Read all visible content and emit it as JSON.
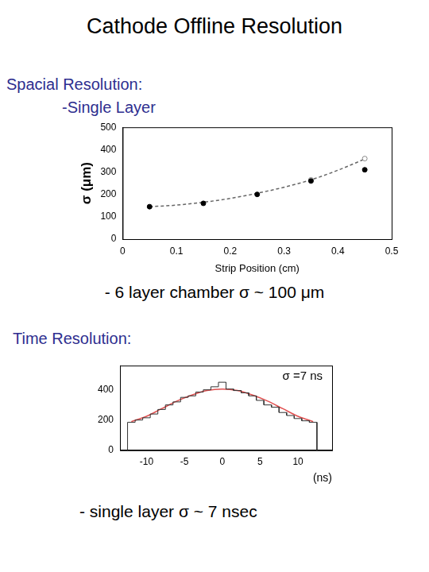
{
  "title": "Cathode Offline Resolution",
  "sections": [
    {
      "heading": "Spacial Resolution:",
      "subheading": "-Single Layer",
      "note": "- 6 layer chamber σ ~ 100 μm"
    },
    {
      "heading": "Time Resolution:",
      "note": "- single layer σ ~ 7 nsec"
    }
  ],
  "chart_data": [
    {
      "type": "scatter",
      "x_label": "Strip Position (cm)",
      "y_label": "σ (μm)",
      "xlim": [
        0,
        0.5
      ],
      "ylim": [
        0,
        500
      ],
      "xticks": [
        0,
        0.1,
        0.2,
        0.3,
        0.4,
        0.5
      ],
      "yticks": [
        0,
        100,
        200,
        300,
        400,
        500
      ],
      "grid": false,
      "series": [
        {
          "type": "scatter",
          "marker": "circle",
          "color": "#000000",
          "x": [
            0.05,
            0.15,
            0.25,
            0.35,
            0.45
          ],
          "values": [
            145,
            160,
            200,
            260,
            310
          ]
        },
        {
          "type": "scatter",
          "marker": "open_circle",
          "color": "#888888",
          "x": [
            0.35,
            0.45
          ],
          "values": [
            265,
            360
          ]
        },
        {
          "type": "line",
          "line_style": "dashed",
          "color": "#666666",
          "x": [
            0.05,
            0.1,
            0.15,
            0.2,
            0.25,
            0.3,
            0.35,
            0.4,
            0.45
          ],
          "values": [
            145,
            152,
            165,
            182,
            205,
            232,
            265,
            308,
            358
          ]
        }
      ]
    },
    {
      "type": "histogram",
      "x_label": "(ns)",
      "annotation": "σ =7 ns",
      "xlim": [
        -13.5,
        14.5
      ],
      "ylim": [
        0,
        560
      ],
      "xticks": [
        -10,
        -5,
        0,
        5,
        10
      ],
      "yticks": [
        0,
        200,
        400
      ],
      "grid": false,
      "color": "#333333",
      "bins": [
        -12.5,
        -11.5,
        -10.5,
        -9.5,
        -8.5,
        -7.5,
        -6.5,
        -5.5,
        -4.5,
        -3.5,
        -2.5,
        -1.5,
        -0.5,
        0.5,
        1.5,
        2.5,
        3.5,
        4.5,
        5.5,
        6.5,
        7.5,
        8.5,
        9.5,
        10.5,
        11.5,
        12.5
      ],
      "counts": [
        185,
        200,
        215,
        240,
        270,
        300,
        320,
        350,
        360,
        385,
        400,
        420,
        450,
        405,
        395,
        380,
        360,
        330,
        300,
        285,
        250,
        230,
        210,
        195,
        185
      ],
      "series": [
        {
          "type": "line",
          "color": "#e05050",
          "x": [
            -12,
            -10,
            -8,
            -6,
            -4,
            -2,
            0,
            2,
            4,
            6,
            8,
            10,
            12
          ],
          "values": [
            190,
            225,
            275,
            325,
            365,
            395,
            405,
            395,
            365,
            325,
            275,
            225,
            190
          ]
        }
      ]
    }
  ]
}
